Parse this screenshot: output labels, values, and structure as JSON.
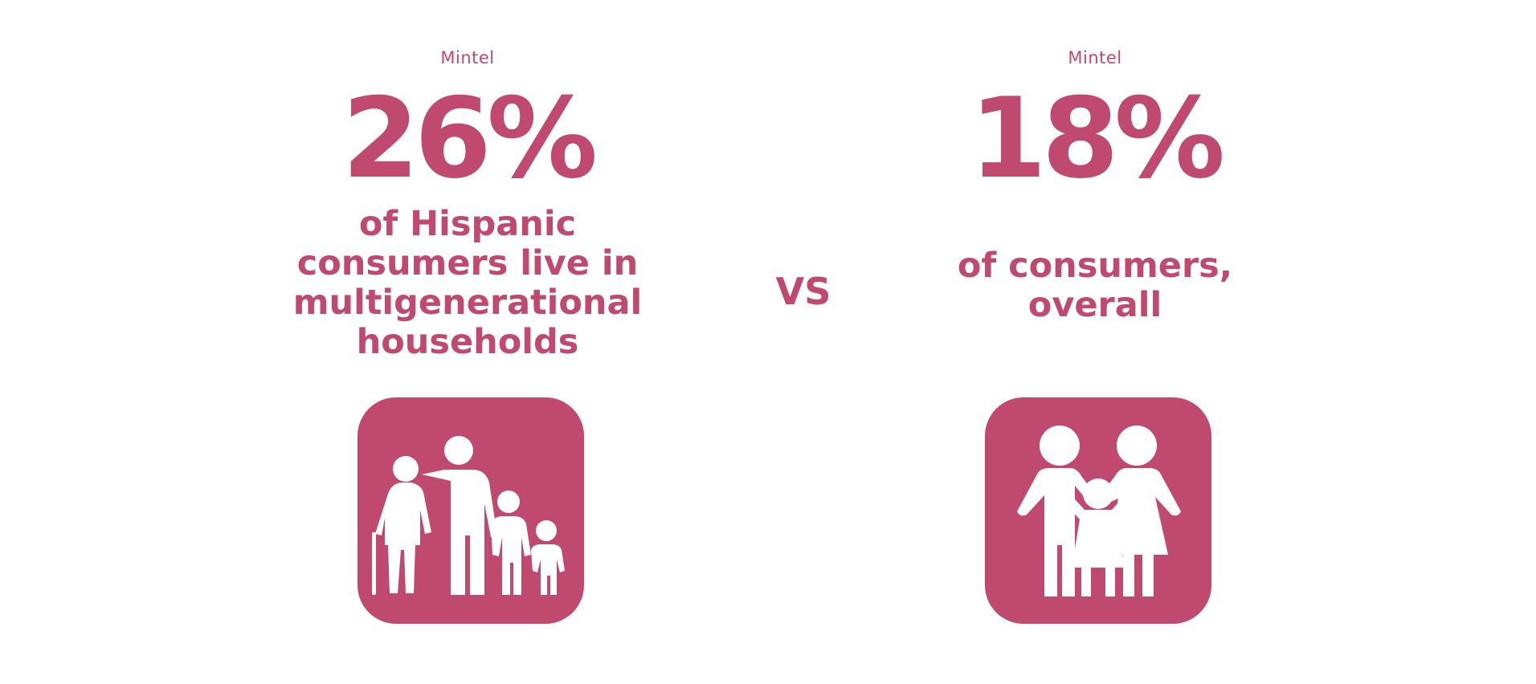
{
  "colors": {
    "accent": "#c0496f",
    "icon_fg": "#ffffff",
    "background": "#ffffff"
  },
  "left_stat": {
    "source": "Mintel",
    "percent": "26%",
    "description_lines": [
      "of Hispanic",
      "consumers live in",
      "multigenerational",
      "households"
    ],
    "icon": "multigenerational-family-icon"
  },
  "comparison": {
    "label": "VS"
  },
  "right_stat": {
    "source": "Mintel",
    "percent": "18%",
    "description_lines": [
      "of consumers,",
      "overall"
    ],
    "icon": "nuclear-family-icon"
  }
}
